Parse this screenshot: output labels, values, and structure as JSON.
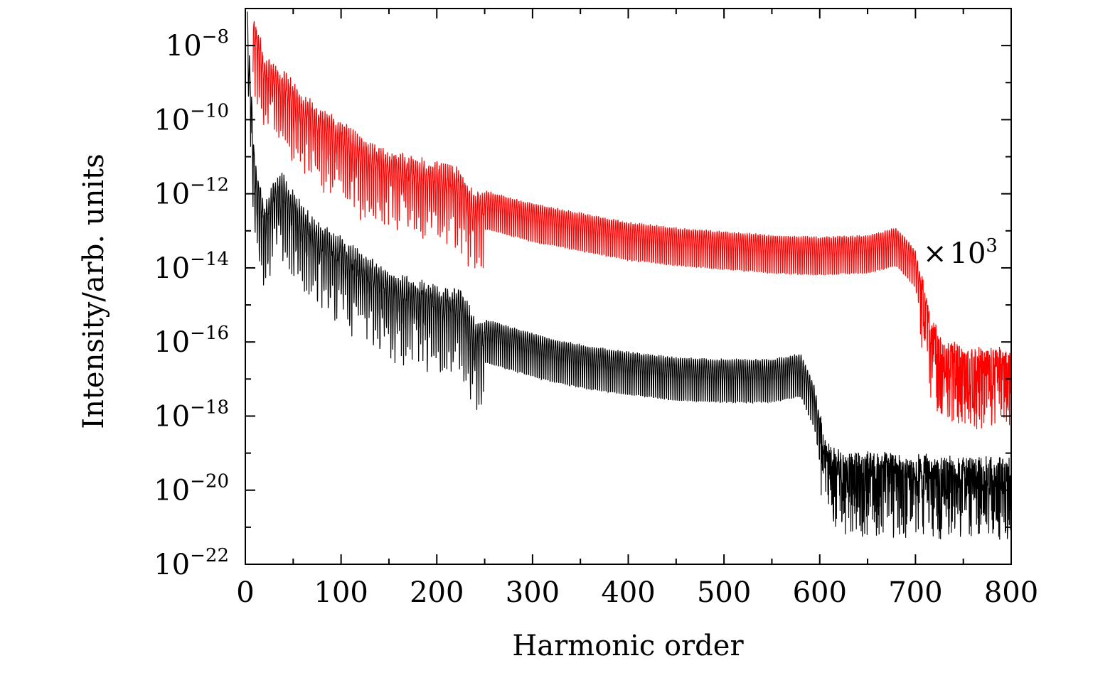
{
  "chart_data": {
    "type": "line",
    "title": "",
    "xlabel": "Harmonic order",
    "ylabel": "Intensity/arb. units",
    "xlim": [
      0,
      800
    ],
    "ylim_exponent": [
      -22,
      -7
    ],
    "yscale": "log",
    "grid": false,
    "x_ticks": [
      "0",
      "100",
      "200",
      "300",
      "400",
      "500",
      "600",
      "700",
      "800"
    ],
    "y_ticks": [
      {
        "base": "10",
        "exp": "−8",
        "value": -8
      },
      {
        "base": "10",
        "exp": "−10",
        "value": -10
      },
      {
        "base": "10",
        "exp": "−12",
        "value": -12
      },
      {
        "base": "10",
        "exp": "−14",
        "value": -14
      },
      {
        "base": "10",
        "exp": "−16",
        "value": -16
      },
      {
        "base": "10",
        "exp": "−18",
        "value": -18
      },
      {
        "base": "10",
        "exp": "−20",
        "value": -20
      },
      {
        "base": "10",
        "exp": "−22",
        "value": -22
      }
    ],
    "annotation": {
      "prefix": "×",
      "base": "10",
      "exp": "3"
    },
    "series": [
      {
        "color": "#ff0000",
        "envelope_x": [
          8,
          20,
          40,
          60,
          80,
          100,
          120,
          150,
          200,
          220,
          235,
          250,
          300,
          350,
          400,
          450,
          500,
          550,
          600,
          650,
          680,
          700,
          715,
          730,
          760,
          800
        ],
        "envelope_log10": [
          -7.0,
          -8.2,
          -8.6,
          -9.3,
          -9.6,
          -10.0,
          -10.4,
          -10.8,
          -11.1,
          -11.2,
          -11.8,
          -11.9,
          -12.25,
          -12.5,
          -12.75,
          -12.9,
          -13.0,
          -13.1,
          -13.15,
          -13.1,
          -12.9,
          -13.5,
          -15.5,
          -16.2,
          -16.4,
          -16.4
        ],
        "dip_depth": 2.2
      },
      {
        "color": "#000000",
        "envelope_x": [
          2,
          10,
          20,
          30,
          40,
          60,
          80,
          100,
          120,
          150,
          200,
          225,
          240,
          280,
          320,
          360,
          400,
          450,
          500,
          550,
          580,
          595,
          605,
          620,
          700,
          800
        ],
        "envelope_log10": [
          -7.0,
          -11.0,
          -12.2,
          -11.5,
          -11.4,
          -12.3,
          -12.8,
          -13.1,
          -13.5,
          -14.0,
          -14.4,
          -14.5,
          -15.3,
          -15.6,
          -15.9,
          -16.1,
          -16.25,
          -16.4,
          -16.45,
          -16.45,
          -16.3,
          -17.2,
          -18.9,
          -19.2,
          -19.3,
          -19.4
        ],
        "dip_depth": 2.5
      }
    ]
  }
}
